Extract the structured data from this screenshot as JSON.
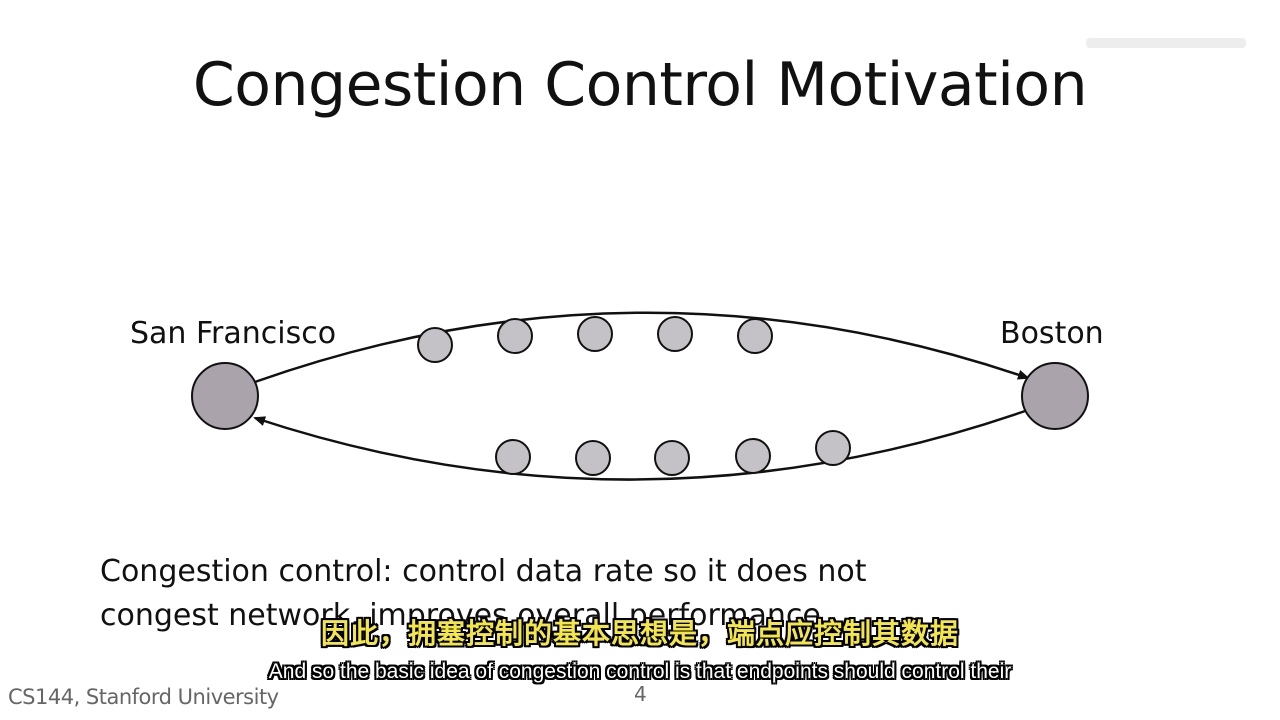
{
  "slide": {
    "title": "Congestion Control Motivation",
    "cities": {
      "left": "San Francisco",
      "right": "Boston"
    },
    "caption": {
      "line1": "Congestion control: control data rate so it does not",
      "line2": "congest network, improves overall performance."
    },
    "footer": {
      "course": "CS144, Stanford University",
      "page": "4"
    }
  },
  "subtitles": {
    "zh": "因此，拥塞控制的基本思想是，端点应控制其数据",
    "en": "And so the basic idea of congestion control is that endpoints should control their"
  },
  "colors": {
    "endpoint_fill": "#aaa3ab",
    "router_fill": "#c4c2c6",
    "stroke": "#111111",
    "subtitle_zh": "#f3e64c"
  }
}
